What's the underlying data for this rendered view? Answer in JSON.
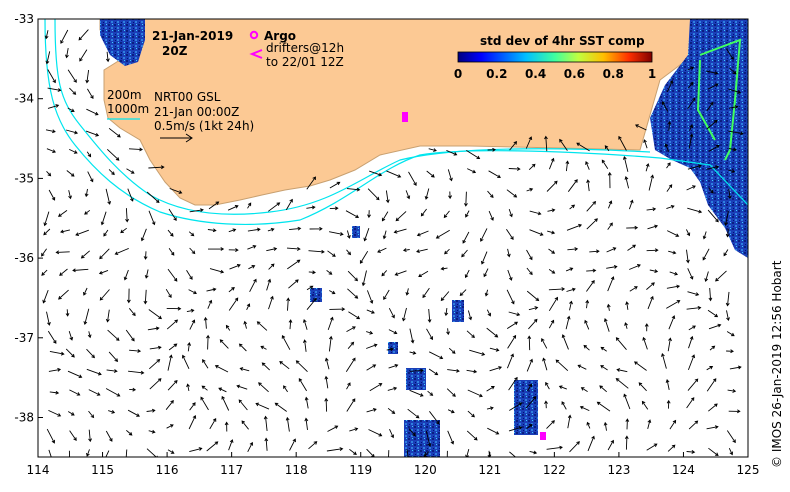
{
  "header": {
    "date": "21-Jan-2019",
    "time": "20Z",
    "argo_label": "Argo",
    "drifters_line1": "drifters@12h",
    "drifters_line2": "to 22/01 12Z"
  },
  "legend": {
    "isobath_200": "200m",
    "isobath_1000": "1000m",
    "product": "NRT00 GSL",
    "valid_time": "21-Jan 00:00Z",
    "vector_scale": "0.5m/s (1kt 24h)"
  },
  "colorbar": {
    "title": "std dev of 4hr SST comp",
    "ticks": [
      "0",
      "0.2",
      "0.4",
      "0.6",
      "0.8",
      "1"
    ]
  },
  "axes": {
    "x_ticks": [
      "114",
      "115",
      "116",
      "117",
      "118",
      "119",
      "120",
      "121",
      "122",
      "123",
      "124",
      "125"
    ],
    "y_ticks": [
      "-33",
      "-34",
      "-35",
      "-36",
      "-37",
      "-38"
    ]
  },
  "credit": "© IMOS 26-Jan-2019 12:56 Hobart",
  "colors": {
    "land": "#fcc994",
    "isobath": "#00e5ee",
    "argo": "#ff00ff"
  }
}
